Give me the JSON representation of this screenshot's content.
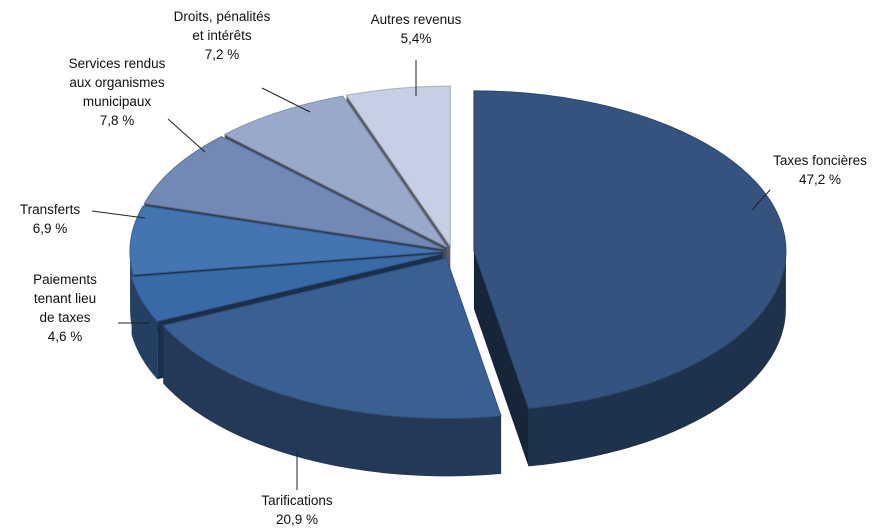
{
  "chart_data": {
    "type": "pie",
    "title": "",
    "slices": [
      {
        "name": "Taxes foncières",
        "value": 47.2,
        "label": "47,2 %",
        "color": "#34537f"
      },
      {
        "name": "Tarifications",
        "value": 20.9,
        "label": "20,9 %",
        "color": "#3a5f91"
      },
      {
        "name": "Paiements tenant lieu de taxes",
        "value": 4.6,
        "label": "4,6 %",
        "color": "#3a6aa5"
      },
      {
        "name": "Transferts",
        "value": 6.9,
        "label": "6,9 %",
        "color": "#4474b2"
      },
      {
        "name": "Services rendus aux organismes municipaux",
        "value": 7.8,
        "label": "7,8 %",
        "color": "#7189b4"
      },
      {
        "name": "Droits, pénalités et intérêts",
        "value": 7.2,
        "label": "7,2 %",
        "color": "#9aa9cb"
      },
      {
        "name": "Autres revenus",
        "value": 5.4,
        "label": "5,4%",
        "color": "#c6cfe3"
      }
    ],
    "style": "3d-exploded"
  }
}
